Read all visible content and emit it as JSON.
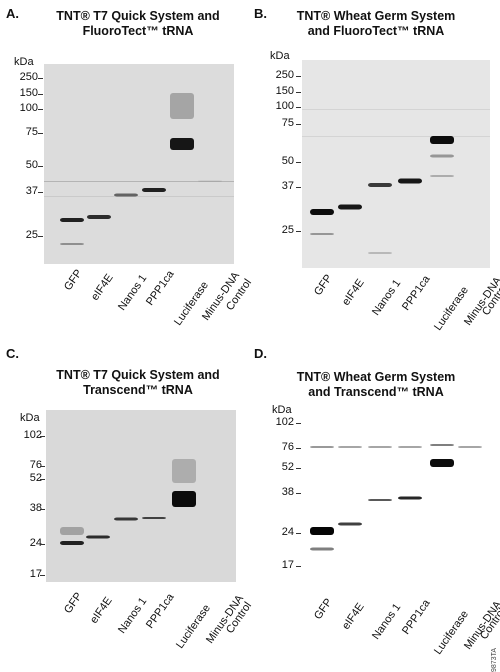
{
  "panels": [
    {
      "id": "A",
      "letter": "A.",
      "title": "TNT® T7 Quick System and\nFluoroTect™ tRNA",
      "kda_label": "kDa",
      "markers": [
        "250",
        "150",
        "100",
        "75",
        "50",
        "37",
        "25"
      ],
      "lanes": [
        "GFP",
        "eIF4E",
        "Nanos 1",
        "PPP1ca",
        "Luciferase",
        "Minus-DNA",
        "Control"
      ],
      "gel_color": "#dcdcdc"
    },
    {
      "id": "B",
      "letter": "B.",
      "title": "TNT® Wheat Germ System\nand FluoroTect™ tRNA",
      "kda_label": "kDa",
      "markers": [
        "250",
        "150",
        "100",
        "75",
        "50",
        "37",
        "25"
      ],
      "lanes": [
        "GFP",
        "eIF4E",
        "Nanos 1",
        "PPP1ca",
        "Luciferase",
        "Minus-DNA",
        "Control"
      ],
      "gel_color": "#e6e6e6"
    },
    {
      "id": "C",
      "letter": "C.",
      "title": "TNT® T7 Quick System and\nTranscend™ tRNA",
      "kda_label": "kDa",
      "markers": [
        "102",
        "76",
        "52",
        "38",
        "24",
        "17"
      ],
      "lanes": [
        "GFP",
        "eIF4E",
        "Nanos 1",
        "PPP1ca",
        "Luciferase",
        "Minus-DNA",
        "Control"
      ],
      "gel_color": "#d9d9d9"
    },
    {
      "id": "D",
      "letter": "D.",
      "title": "TNT® Wheat Germ System\nand Transcend™ tRNA",
      "kda_label": "kDa",
      "markers": [
        "102",
        "76",
        "52",
        "38",
        "24",
        "17"
      ],
      "lanes": [
        "GFP",
        "eIF4E",
        "Nanos 1",
        "PPP1ca",
        "Luciferase",
        "Minus-DNA",
        "Control"
      ],
      "gel_color": "#ffffff"
    }
  ],
  "catalog_number": "9873TA"
}
